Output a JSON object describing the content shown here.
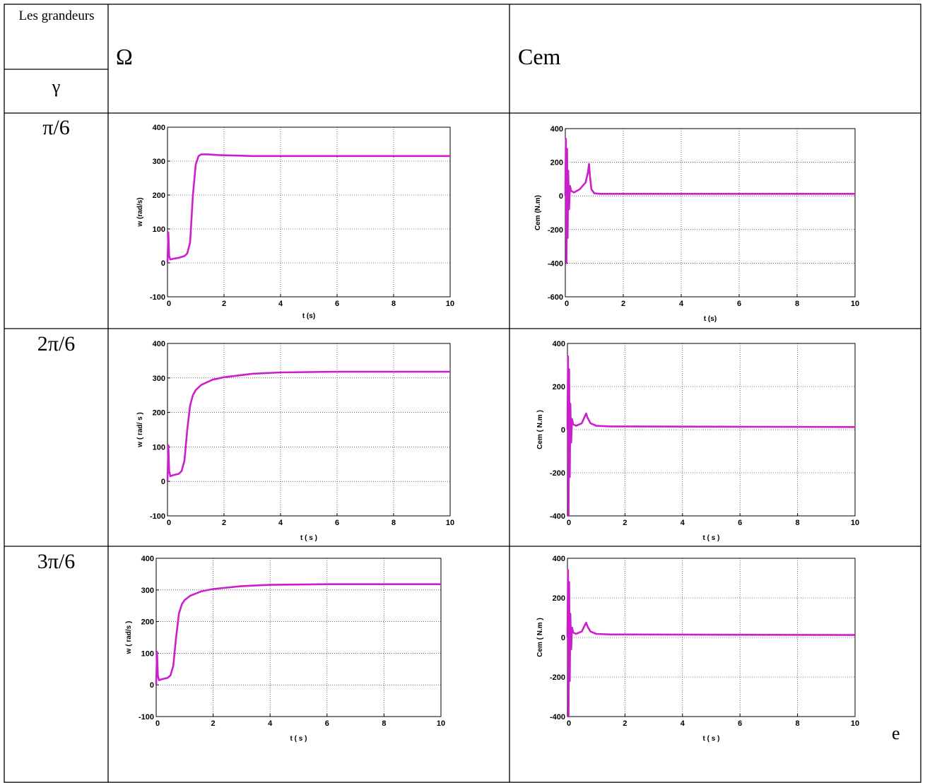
{
  "table": {
    "header_quantities": "Les grandeurs",
    "header_gamma": "γ",
    "col_omega": "Ω",
    "col_cem": "Cem",
    "rows": [
      {
        "gamma": "π/6"
      },
      {
        "gamma": "2π/6"
      },
      {
        "gamma": "3π/6"
      }
    ],
    "stray_text": "e"
  },
  "colors": {
    "trace": "#cc1fcc",
    "grid": "#000000"
  },
  "chart_data": [
    {
      "type": "line",
      "id": "omega-1",
      "xlabel": "t (s)",
      "ylabel": "w (rad/s)",
      "xlim": [
        0,
        10
      ],
      "ylim": [
        -100,
        400
      ],
      "xticks": [
        "0",
        "2",
        "4",
        "6",
        "8",
        "10"
      ],
      "yticks": [
        "-100",
        "0",
        "100",
        "200",
        "300",
        "400"
      ],
      "grid": true,
      "x": [
        0,
        0.03,
        0.06,
        0.1,
        0.2,
        0.4,
        0.6,
        0.7,
        0.8,
        0.9,
        1.0,
        1.1,
        1.2,
        1.4,
        1.8,
        3,
        5,
        10
      ],
      "y": [
        0,
        90,
        20,
        10,
        12,
        15,
        20,
        28,
        60,
        200,
        290,
        315,
        320,
        320,
        318,
        315,
        315,
        315
      ]
    },
    {
      "type": "line",
      "id": "cem-1",
      "xlabel": "t (s)",
      "ylabel": "Cem (N.m)",
      "xlim": [
        0,
        10
      ],
      "ylim": [
        -600,
        400
      ],
      "xticks": [
        "0",
        "2",
        "4",
        "6",
        "8",
        "10"
      ],
      "yticks": [
        "-600",
        "-400",
        "-200",
        "0",
        "200",
        "400"
      ],
      "grid": true,
      "x": [
        0,
        0.02,
        0.04,
        0.06,
        0.08,
        0.1,
        0.13,
        0.16,
        0.2,
        0.3,
        0.5,
        0.7,
        0.78,
        0.82,
        0.85,
        0.9,
        1.0,
        1.2,
        2,
        10
      ],
      "y": [
        0,
        340,
        -400,
        280,
        -250,
        150,
        -80,
        60,
        30,
        20,
        40,
        80,
        140,
        190,
        120,
        40,
        15,
        12,
        12,
        12
      ]
    },
    {
      "type": "line",
      "id": "omega-2",
      "xlabel": "t ( s )",
      "ylabel": "w ( rad/ s )",
      "xlim": [
        0,
        10
      ],
      "ylim": [
        -100,
        400
      ],
      "xticks": [
        "0",
        "2",
        "4",
        "6",
        "8",
        "10"
      ],
      "yticks": [
        "-100",
        "0",
        "100",
        "200",
        "300",
        "400"
      ],
      "grid": true,
      "x": [
        0,
        0.03,
        0.06,
        0.1,
        0.2,
        0.4,
        0.5,
        0.6,
        0.7,
        0.8,
        0.9,
        1.0,
        1.2,
        1.6,
        2,
        3,
        4,
        6,
        10
      ],
      "y": [
        0,
        105,
        30,
        15,
        18,
        22,
        30,
        60,
        150,
        220,
        250,
        265,
        280,
        295,
        302,
        312,
        316,
        318,
        318
      ]
    },
    {
      "type": "line",
      "id": "cem-2",
      "xlabel": "t ( s )",
      "ylabel": "Cem ( N.m )",
      "xlim": [
        0,
        10
      ],
      "ylim": [
        -400,
        400
      ],
      "xticks": [
        "0",
        "2",
        "4",
        "6",
        "8",
        "10"
      ],
      "yticks": [
        "-400",
        "-200",
        "0",
        "200",
        "400"
      ],
      "grid": true,
      "x": [
        0,
        0.02,
        0.04,
        0.06,
        0.08,
        0.1,
        0.13,
        0.16,
        0.2,
        0.3,
        0.5,
        0.6,
        0.65,
        0.7,
        0.8,
        1.0,
        1.5,
        10
      ],
      "y": [
        0,
        340,
        -400,
        280,
        -220,
        120,
        -60,
        50,
        25,
        18,
        30,
        60,
        75,
        55,
        30,
        18,
        15,
        12
      ]
    },
    {
      "type": "line",
      "id": "omega-3",
      "xlabel": "t ( s )",
      "ylabel": "w ( rad/s )",
      "xlim": [
        0,
        10
      ],
      "ylim": [
        -100,
        400
      ],
      "xticks": [
        "0",
        "2",
        "4",
        "6",
        "8",
        "10"
      ],
      "yticks": [
        "-100",
        "0",
        "100",
        "200",
        "300",
        "400"
      ],
      "grid": true,
      "x": [
        0,
        0.03,
        0.06,
        0.1,
        0.2,
        0.4,
        0.5,
        0.6,
        0.7,
        0.8,
        0.9,
        1.0,
        1.2,
        1.6,
        2,
        3,
        4,
        6,
        10
      ],
      "y": [
        0,
        105,
        30,
        15,
        18,
        22,
        30,
        60,
        150,
        225,
        255,
        268,
        282,
        296,
        303,
        312,
        316,
        318,
        318
      ]
    },
    {
      "type": "line",
      "id": "cem-3",
      "xlabel": "t ( s )",
      "ylabel": "Cem ( N.m )",
      "xlim": [
        0,
        10
      ],
      "ylim": [
        -400,
        400
      ],
      "xticks": [
        "0",
        "2",
        "4",
        "6",
        "8",
        "10"
      ],
      "yticks": [
        "-400",
        "-200",
        "0",
        "200",
        "400"
      ],
      "grid": true,
      "x": [
        0,
        0.02,
        0.04,
        0.06,
        0.08,
        0.1,
        0.13,
        0.16,
        0.2,
        0.3,
        0.5,
        0.6,
        0.65,
        0.7,
        0.8,
        1.0,
        1.5,
        10
      ],
      "y": [
        0,
        340,
        -400,
        280,
        -220,
        120,
        -60,
        50,
        25,
        18,
        30,
        60,
        75,
        55,
        30,
        18,
        15,
        12
      ]
    }
  ]
}
